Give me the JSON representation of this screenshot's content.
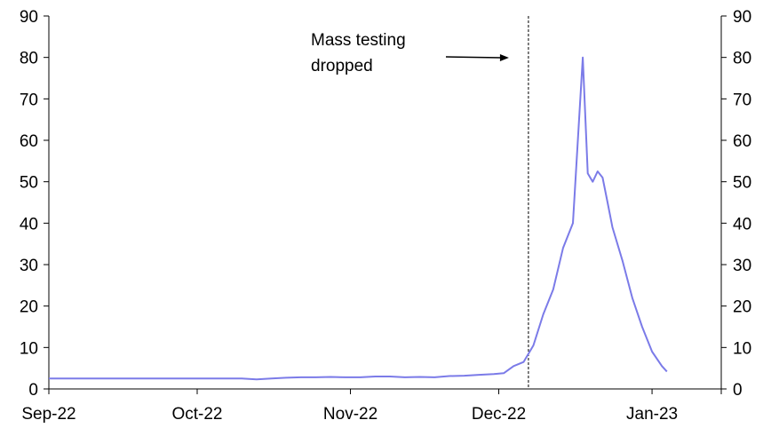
{
  "chart_data": {
    "type": "line",
    "title": "",
    "xlabel": "",
    "ylabel": "",
    "ylim": [
      0,
      90
    ],
    "y_ticks": [
      0,
      10,
      20,
      30,
      40,
      50,
      60,
      70,
      80,
      90
    ],
    "y_tick_labels": [
      "0",
      "10",
      "20",
      "30",
      "40",
      "50",
      "60",
      "70",
      "80",
      "90"
    ],
    "secondary_y_axis": true,
    "x_ticks": [
      "2022-09-01",
      "2022-10-01",
      "2022-11-01",
      "2022-12-01",
      "2023-01-01"
    ],
    "x_tick_labels": [
      "Sep-22",
      "Oct-22",
      "Nov-22",
      "Dec-22",
      "Jan-23"
    ],
    "xlim": [
      "2022-09-01",
      "2023-01-15"
    ],
    "grid": false,
    "line_color": "#7b7be8",
    "series": [
      {
        "name": "",
        "x": [
          "2022-09-01",
          "2022-09-04",
          "2022-09-07",
          "2022-09-10",
          "2022-09-13",
          "2022-09-16",
          "2022-09-19",
          "2022-09-22",
          "2022-09-25",
          "2022-09-28",
          "2022-10-01",
          "2022-10-04",
          "2022-10-07",
          "2022-10-10",
          "2022-10-13",
          "2022-10-16",
          "2022-10-19",
          "2022-10-22",
          "2022-10-25",
          "2022-10-28",
          "2022-10-31",
          "2022-11-03",
          "2022-11-06",
          "2022-11-09",
          "2022-11-12",
          "2022-11-15",
          "2022-11-18",
          "2022-11-21",
          "2022-11-24",
          "2022-11-27",
          "2022-11-30",
          "2022-12-02",
          "2022-12-04",
          "2022-12-06",
          "2022-12-08",
          "2022-12-10",
          "2022-12-12",
          "2022-12-14",
          "2022-12-16",
          "2022-12-18",
          "2022-12-19",
          "2022-12-20",
          "2022-12-21",
          "2022-12-22",
          "2022-12-23",
          "2022-12-24",
          "2022-12-26",
          "2022-12-28",
          "2022-12-30",
          "2023-01-01",
          "2023-01-03",
          "2023-01-04"
        ],
        "values": [
          2.5,
          2.5,
          2.5,
          2.5,
          2.5,
          2.5,
          2.5,
          2.5,
          2.5,
          2.5,
          2.5,
          2.5,
          2.5,
          2.5,
          2.3,
          2.5,
          2.7,
          2.8,
          2.8,
          2.9,
          2.8,
          2.8,
          3.0,
          3.0,
          2.8,
          2.9,
          2.8,
          3.1,
          3.2,
          3.4,
          3.6,
          3.8,
          5.5,
          6.5,
          10.5,
          18,
          24,
          34,
          40,
          80,
          52,
          50,
          52.5,
          51,
          45,
          39,
          31,
          22,
          15,
          9,
          5.5,
          4.2
        ]
      }
    ],
    "annotations": [
      {
        "text_lines": [
          "Mass testing",
          "dropped"
        ],
        "x": "2022-12-07",
        "vertical_line_dashed": true
      }
    ]
  }
}
